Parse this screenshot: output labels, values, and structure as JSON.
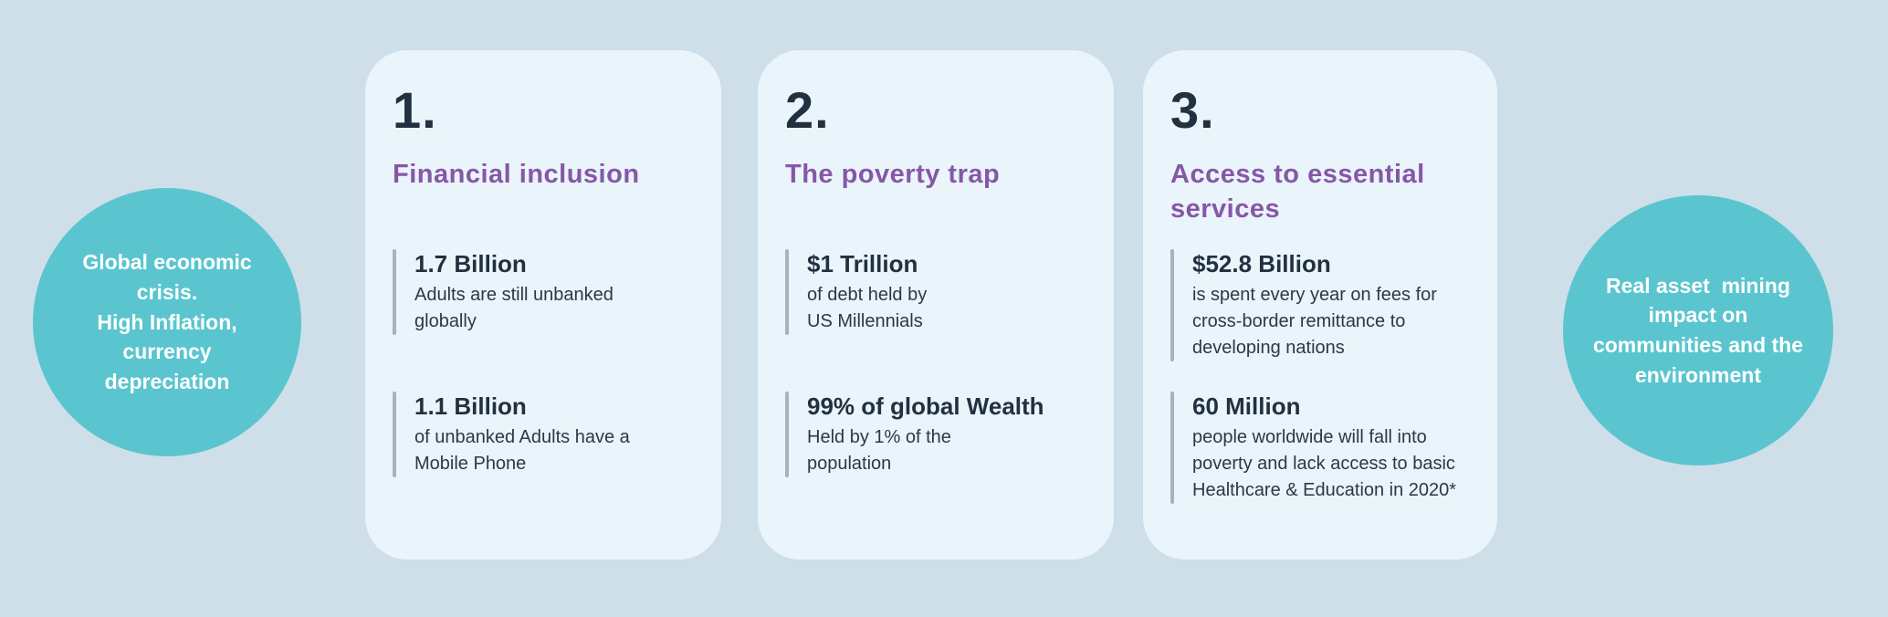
{
  "page": {
    "background_color": "#cedfea",
    "card_background_color": "#e9f4fb",
    "accent_teal": "#5ac5cf",
    "accent_purple": "#8757a6",
    "text_dark": "#22303f",
    "stat_bar_color": "#a8b2ba"
  },
  "left_circle": {
    "text": "Global economic\ncrisis.\nHigh Inflation,\ncurrency\ndepreciation"
  },
  "right_circle": {
    "text": "Real asset  mining\nimpact on\ncommunities and the\nenvironment"
  },
  "cards": [
    {
      "number": "1.",
      "title": "Financial inclusion",
      "stats": [
        {
          "value": "1.7 Billion",
          "description": "Adults are still unbanked\nglobally"
        },
        {
          "value": "1.1 Billion",
          "description": "of unbanked Adults have a\nMobile Phone"
        }
      ]
    },
    {
      "number": "2.",
      "title": "The poverty trap",
      "stats": [
        {
          "value": "$1 Trillion",
          "description": "of debt held by\nUS Millennials"
        },
        {
          "value": "99% of global Wealth",
          "description": "Held by 1% of the\npopulation"
        }
      ]
    },
    {
      "number": "3.",
      "title": "Access to essential\nservices",
      "stats": [
        {
          "value": "$52.8 Billion",
          "description": "is spent every year on fees for\ncross-border remittance to\ndeveloping nations"
        },
        {
          "value": "60 Million",
          "description": "people worldwide will fall into\npoverty and lack access to basic\nHealthcare & Education in 2020*"
        }
      ]
    }
  ]
}
